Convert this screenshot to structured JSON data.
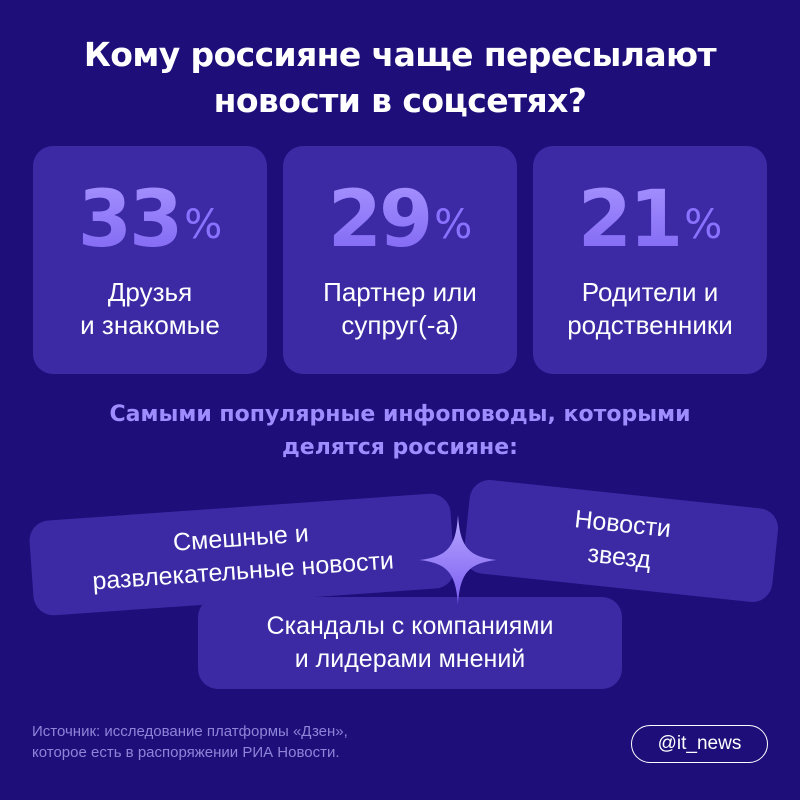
{
  "header": {
    "title_lines": [
      "Кому россияне чаще пересылают",
      "новости в соцсетях?"
    ]
  },
  "stats": [
    {
      "value": "33",
      "unit": "%",
      "label_lines": [
        "Друзья",
        "и знакомые"
      ]
    },
    {
      "value": "29",
      "unit": "%",
      "label_lines": [
        "Партнер или",
        "супруг(-а)"
      ]
    },
    {
      "value": "21",
      "unit": "%",
      "label_lines": [
        "Родители и",
        "родственники"
      ]
    }
  ],
  "topics": {
    "heading_lines": [
      "Самыми популярные инфоповоды, которыми",
      "делятся россияне:"
    ],
    "items": [
      {
        "lines": [
          "Смешные и",
          "развлекательные новости"
        ]
      },
      {
        "lines": [
          "Новости",
          "звезд"
        ]
      },
      {
        "lines": [
          "Скандалы с компаниями",
          "и лидерами мнений"
        ]
      }
    ]
  },
  "footer": {
    "source_lines": [
      "Источник: исследование платформы «Дзен»,",
      "которое есть в распоряжении РИА Новости."
    ],
    "handle": "@it_news"
  },
  "colors": {
    "background": "#1d0e7a",
    "card": "#3b2aa4",
    "accent": "#9a86ff",
    "subtitle": "#9f8dff",
    "text": "#ffffff",
    "muted": "#8e84d8"
  },
  "icons": {
    "divider": "sparkle-icon"
  }
}
